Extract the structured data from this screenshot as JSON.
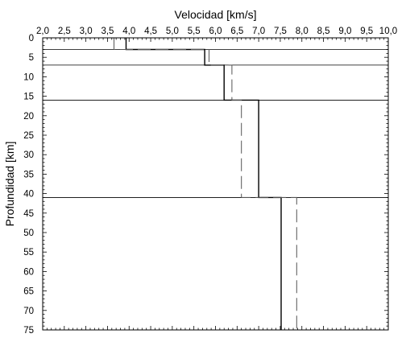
{
  "chart_data": {
    "type": "line",
    "title": "",
    "xlabel": "Velocidad [km/s]",
    "ylabel": "Profundidad [km]",
    "xlim": [
      2.0,
      10.0
    ],
    "ylim": [
      0,
      75
    ],
    "x_axis_position": "top",
    "y_axis_inverted": true,
    "grid": false,
    "legend": "none",
    "x_ticks": [
      "2,0",
      "2,5",
      "3,0",
      "3,5",
      "4,0",
      "4,5",
      "5,0",
      "5,5",
      "6,0",
      "6,5",
      "7,0",
      "7,5",
      "8,0",
      "8,5",
      "9,0",
      "9,5",
      "10,0"
    ],
    "y_ticks": [
      "0",
      "5",
      "10",
      "15",
      "20",
      "25",
      "30",
      "35",
      "40",
      "45",
      "50",
      "55",
      "60",
      "65",
      "70",
      "75"
    ],
    "layer_boundaries_km": [
      3,
      7,
      16,
      41
    ],
    "series": [
      {
        "style": "solid",
        "color": "#000000",
        "points": [
          [
            3.93,
            0
          ],
          [
            3.93,
            3
          ],
          [
            5.75,
            3
          ],
          [
            5.75,
            7
          ],
          [
            6.2,
            7
          ],
          [
            6.2,
            16
          ],
          [
            7.0,
            16
          ],
          [
            7.0,
            41
          ],
          [
            7.52,
            41
          ],
          [
            7.52,
            75
          ]
        ]
      },
      {
        "style": "dashed",
        "color": "#555555",
        "points": [
          [
            3.65,
            0
          ],
          [
            3.65,
            3
          ],
          [
            5.85,
            3
          ],
          [
            5.85,
            7
          ],
          [
            6.38,
            7
          ],
          [
            6.38,
            16
          ],
          [
            6.6,
            16
          ],
          [
            6.6,
            41
          ],
          [
            7.88,
            41
          ],
          [
            7.88,
            75
          ]
        ]
      }
    ]
  }
}
